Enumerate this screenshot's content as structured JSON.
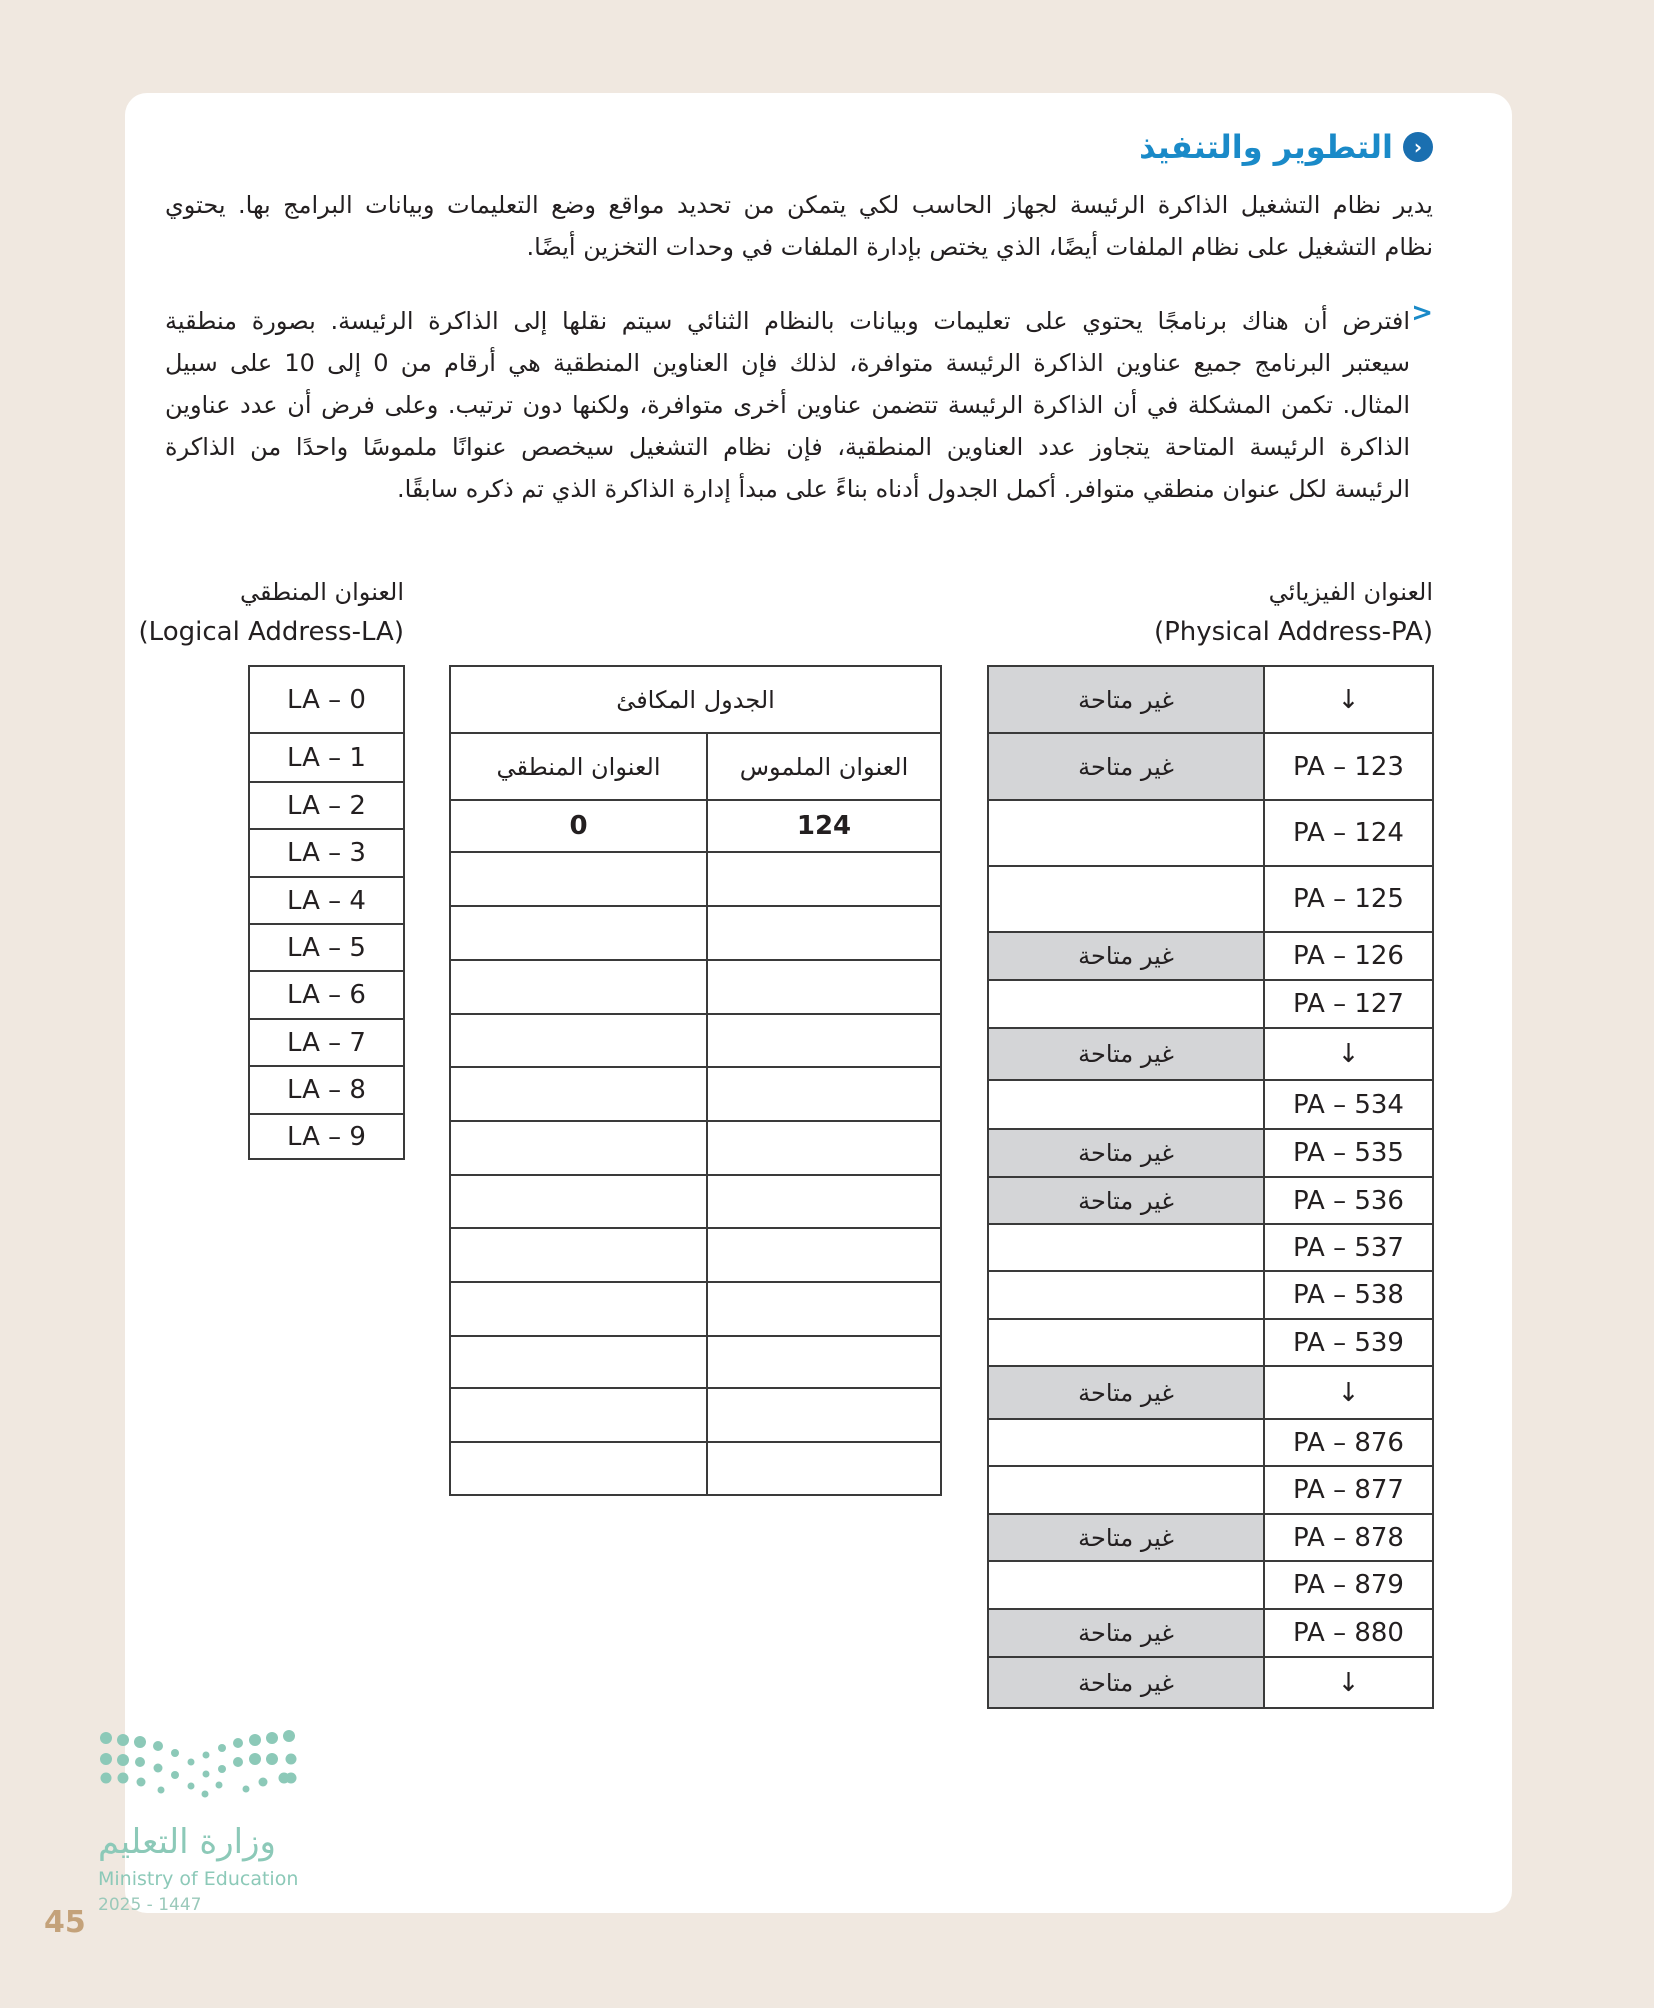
{
  "section": {
    "title": "التطوير والتنفيذ",
    "icon": "chevron-circle-icon"
  },
  "intro_lines": [
    "يدير نظام التشغيل الذاكرة الرئيسة لجهاز الحاسب لكي يتمكن من تحديد مواقع وضع التعليمات وبيانات البرامج بها. يحتوي",
    "نظام التشغيل على نظام الملفات أيضًا، الذي يختص بإدارة الملفات في وحدات التخزين أيضًا."
  ],
  "task_lines": [
    "افترض أن هناك برنامجًا يحتوي على تعليمات وبيانات بالنظام الثنائي سيتم نقلها إلى الذاكرة الرئيسة. بصورة منطقية",
    "سيعتبر البرنامج جميع عناوين الذاكرة الرئيسة متوافرة، لذلك فإن العناوين المنطقية هي أرقام من 0 إلى 10 على سبيل",
    "المثال. تكمن المشكلة في أن الذاكرة الرئيسة تتضمن عناوين أخرى متوافرة، ولكنها دون ترتيب. وعلى فرض أن عدد عناوين",
    "الذاكرة الرئيسة المتاحة يتجاوز عدد العناوين المنطقية، فإن نظام التشغيل سيخصص عنوانًا ملموسًا واحدًا من الذاكرة",
    "الرئيسة لكل عنوان منطقي متوافر. أكمل الجدول أدناه بناءً على مبدأ إدارة الذاكرة الذي تم ذكره سابقًا."
  ],
  "bullet": ">",
  "logical": {
    "title_ar": "العنوان المنطقي",
    "title_en": "(Logical Address-LA)",
    "rows": [
      "LA – 0",
      "LA – 1",
      "LA – 2",
      "LA – 3",
      "LA – 4",
      "LA – 5",
      "LA – 6",
      "LA – 7",
      "LA – 8",
      "LA – 9"
    ]
  },
  "mapping": {
    "title": "الجدول المكافئ",
    "col_physical": "العنوان الملموس",
    "col_logical": "العنوان المنطقي",
    "rows": [
      {
        "physical": "124",
        "logical": "0"
      },
      {
        "physical": "",
        "logical": ""
      },
      {
        "physical": "",
        "logical": ""
      },
      {
        "physical": "",
        "logical": ""
      },
      {
        "physical": "",
        "logical": ""
      },
      {
        "physical": "",
        "logical": ""
      },
      {
        "physical": "",
        "logical": ""
      },
      {
        "physical": "",
        "logical": ""
      },
      {
        "physical": "",
        "logical": ""
      },
      {
        "physical": "",
        "logical": ""
      },
      {
        "physical": "",
        "logical": ""
      },
      {
        "physical": "",
        "logical": ""
      },
      {
        "physical": "",
        "logical": ""
      }
    ]
  },
  "physical": {
    "title_ar": "العنوان الفيزيائي",
    "title_en": "(Physical Address-PA)",
    "unavailable_label": "غير متاحة",
    "rows": [
      {
        "address": "↓",
        "status": "غير متاحة"
      },
      {
        "address": "PA – 123",
        "status": "غير متاحة"
      },
      {
        "address": "PA – 124",
        "status": ""
      },
      {
        "address": "PA – 125",
        "status": ""
      },
      {
        "address": "PA – 126",
        "status": "غير متاحة"
      },
      {
        "address": "PA – 127",
        "status": ""
      },
      {
        "address": "↓",
        "status": "غير متاحة"
      },
      {
        "address": "PA – 534",
        "status": ""
      },
      {
        "address": "PA – 535",
        "status": "غير متاحة"
      },
      {
        "address": "PA – 536",
        "status": "غير متاحة"
      },
      {
        "address": "PA – 537",
        "status": ""
      },
      {
        "address": "PA – 538",
        "status": ""
      },
      {
        "address": "PA – 539",
        "status": ""
      },
      {
        "address": "↓",
        "status": "غير متاحة"
      },
      {
        "address": "PA – 876",
        "status": ""
      },
      {
        "address": "PA – 877",
        "status": ""
      },
      {
        "address": "PA – 878",
        "status": "غير متاحة"
      },
      {
        "address": "PA – 879",
        "status": ""
      },
      {
        "address": "PA – 880",
        "status": "غير متاحة"
      },
      {
        "address": "↓",
        "status": "غير متاحة"
      }
    ]
  },
  "footer": {
    "logo_ar": "وزارة التعليم",
    "logo_en": "Ministry of Education",
    "year": "2025 - 1447",
    "page_number": "45"
  },
  "colors": {
    "accent": "#1a8ac8",
    "unavailable_fill": "#d4d5d7",
    "page_bg": "#f0e8e0",
    "logo": "#8cc9b8",
    "page_number": "#c4a27a"
  }
}
